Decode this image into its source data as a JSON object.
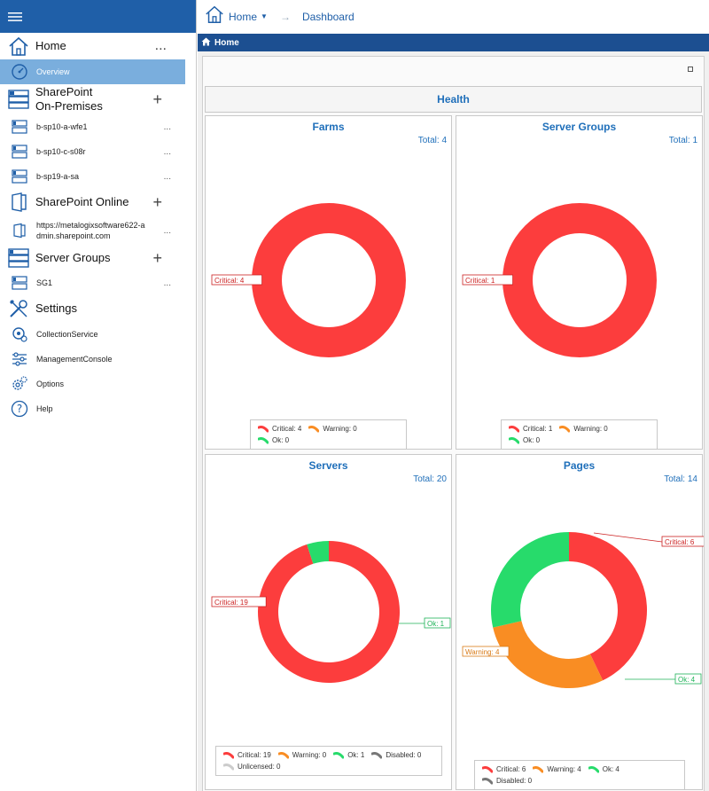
{
  "sidebar": {
    "home": {
      "label": "Home",
      "action": "..."
    },
    "overview": {
      "label": "Overview"
    },
    "sp_onprem": {
      "label_line1": "SharePoint",
      "label_line2": "On-Premises",
      "action": "+"
    },
    "onprem_items": [
      {
        "label": "b-sp10-a-wfe1",
        "action": "..."
      },
      {
        "label": "b-sp10-c-s08r",
        "action": "..."
      },
      {
        "label": "b-sp19-a-sa",
        "action": "..."
      }
    ],
    "sp_online": {
      "label": "SharePoint Online",
      "action": "+"
    },
    "online_item": {
      "line1": "https://metalogixsoftware622-a",
      "line2": "dmin.sharepoint.com",
      "action": "..."
    },
    "server_groups": {
      "label": "Server Groups",
      "action": "+"
    },
    "sg_item": {
      "label": "SG1",
      "action": "..."
    },
    "settings": {
      "label": "Settings"
    },
    "settings_items": [
      {
        "label": "CollectionService",
        "icon": "collection-service-icon"
      },
      {
        "label": "ManagementConsole",
        "icon": "sliders-icon"
      },
      {
        "label": "Options",
        "icon": "gears-icon"
      },
      {
        "label": "Help",
        "icon": "help-icon"
      }
    ]
  },
  "header": {
    "home_label": "Home",
    "breadcrumb": "Dashboard",
    "homebar_title": "Home"
  },
  "colors": {
    "critical": "#fc3d3d",
    "warning": "#f98d23",
    "ok": "#27db6b",
    "disabled": "#777777",
    "unlicensed": "#cccccc",
    "accent": "#1f6fba"
  },
  "dashboard": {
    "health_title": "Health",
    "panels": {
      "farms": {
        "title": "Farms",
        "total_label": "Total:",
        "total": 4,
        "chart_data": {
          "type": "pie",
          "series": [
            {
              "name": "Critical",
              "value": 4
            },
            {
              "name": "Warning",
              "value": 0
            },
            {
              "name": "Ok",
              "value": 0
            }
          ]
        },
        "callouts": [
          "Critical: 4"
        ],
        "legend": [
          "Critical: 4",
          "Warning: 0",
          "Ok: 0"
        ]
      },
      "groups": {
        "title": "Server Groups",
        "total_label": "Total:",
        "total": 1,
        "chart_data": {
          "type": "pie",
          "series": [
            {
              "name": "Critical",
              "value": 1
            },
            {
              "name": "Warning",
              "value": 0
            },
            {
              "name": "Ok",
              "value": 0
            }
          ]
        },
        "callouts": [
          "Critical: 1"
        ],
        "legend": [
          "Critical: 1",
          "Warning: 0",
          "Ok: 0"
        ]
      },
      "servers": {
        "title": "Servers",
        "total_label": "Total:",
        "total": 20,
        "chart_data": {
          "type": "pie",
          "series": [
            {
              "name": "Critical",
              "value": 19
            },
            {
              "name": "Warning",
              "value": 0
            },
            {
              "name": "Ok",
              "value": 1
            },
            {
              "name": "Disabled",
              "value": 0
            },
            {
              "name": "Unlicensed",
              "value": 0
            }
          ]
        },
        "callouts": [
          "Critical: 19",
          "Ok: 1"
        ],
        "legend": [
          "Critical: 19",
          "Warning: 0",
          "Ok: 1",
          "Disabled: 0",
          "Unlicensed: 0"
        ]
      },
      "pages": {
        "title": "Pages",
        "total_label": "Total:",
        "total": 14,
        "chart_data": {
          "type": "pie",
          "series": [
            {
              "name": "Critical",
              "value": 6
            },
            {
              "name": "Warning",
              "value": 4
            },
            {
              "name": "Ok",
              "value": 4
            },
            {
              "name": "Disabled",
              "value": 0
            }
          ]
        },
        "callouts": [
          "Critical: 6",
          "Warning: 4",
          "Ok: 4"
        ],
        "legend": [
          "Critical: 6",
          "Warning: 4",
          "Ok: 4",
          "Disabled: 0"
        ]
      }
    }
  }
}
